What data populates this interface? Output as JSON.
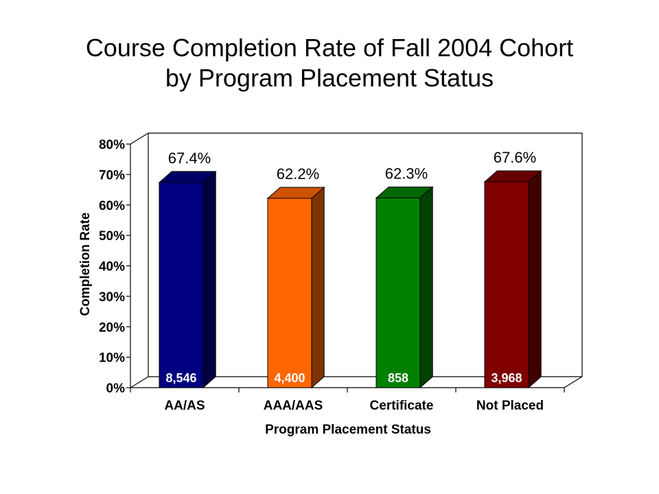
{
  "chart_data": {
    "type": "bar",
    "title_line1": "Course Completion Rate of Fall 2004 Cohort",
    "title_line2": "by Program Placement Status",
    "xlabel": "Program Placement Status",
    "ylabel": "Completion Rate",
    "ylim": [
      0,
      80
    ],
    "yticks": [
      "0%",
      "10%",
      "20%",
      "30%",
      "40%",
      "50%",
      "60%",
      "70%",
      "80%"
    ],
    "categories": [
      "AA/AS",
      "AAA/AAS",
      "Certificate",
      "Not Placed"
    ],
    "values": [
      67.4,
      62.2,
      62.3,
      67.6
    ],
    "value_labels": [
      "67.4%",
      "62.2%",
      "62.3%",
      "67.6%"
    ],
    "counts": [
      "8,546",
      "4,400",
      "858",
      "3,968"
    ],
    "colors": {
      "front": [
        "#000080",
        "#FF6600",
        "#008000",
        "#800000"
      ],
      "side": [
        "#000040",
        "#7F3300",
        "#004000",
        "#400000"
      ],
      "top": [
        "#000066",
        "#CC5200",
        "#006600",
        "#660000"
      ]
    },
    "grid": false,
    "legend": "none"
  }
}
